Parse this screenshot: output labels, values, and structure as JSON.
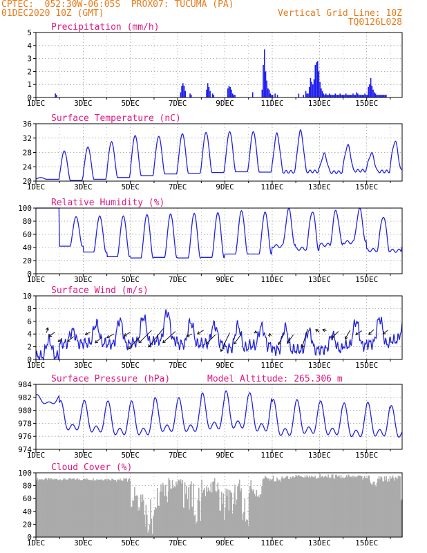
{
  "header": {
    "line1": "CPTEC:  052:30W-06:05S  PROX07: TUCUMA (PA)",
    "line2_left": "01DEC2020 10Z (GMT)",
    "line2_right": "Vertical Grid Line: 10Z",
    "line3_right": "TQ0126L028",
    "model_altitude": "Model Altitude: 265.306 m"
  },
  "colors": {
    "header": "#e8791a",
    "title": "#e0157e",
    "line": "#2222dd",
    "bar": "#1a1aee",
    "cloud": "#aaaaaa",
    "grid": "#999999"
  },
  "chart_data": [
    {
      "type": "bar",
      "title": "Precipitation (mm/h)",
      "ylim": [
        0,
        5
      ],
      "yticks": [
        0,
        1,
        2,
        3,
        4,
        5
      ],
      "xlim": [
        0,
        15.5
      ],
      "xticks": [
        0,
        2,
        4,
        6,
        8,
        10,
        12,
        14
      ],
      "xticklabels": [
        "1DEC",
        "3DEC",
        "5DEC",
        "7DEC",
        "9DEC",
        "11DEC",
        "13DEC",
        "15DEC"
      ],
      "x": [
        0.8,
        0.85,
        6.1,
        6.15,
        6.2,
        6.25,
        6.3,
        6.5,
        6.55,
        7.2,
        7.25,
        7.3,
        7.35,
        7.45,
        7.5,
        8.1,
        8.15,
        8.2,
        8.25,
        8.3,
        8.35,
        8.4,
        9.15,
        9.55,
        9.6,
        9.65,
        9.7,
        9.75,
        9.8,
        9.85,
        9.9,
        9.95,
        10.0,
        10.1,
        10.2,
        11.1,
        11.3,
        11.4,
        11.45,
        11.5,
        11.55,
        11.6,
        11.65,
        11.7,
        11.75,
        11.8,
        11.85,
        11.9,
        11.95,
        12.0,
        12.05,
        12.1,
        12.15,
        12.2,
        12.25,
        12.3,
        12.35,
        12.4,
        12.45,
        12.5,
        12.55,
        12.6,
        12.65,
        12.7,
        12.75,
        12.8,
        12.85,
        12.9,
        12.95,
        13.0,
        13.05,
        13.1,
        13.15,
        13.2,
        13.25,
        13.3,
        13.35,
        13.4,
        13.45,
        13.5,
        13.55,
        13.6,
        13.65,
        13.7,
        13.75,
        13.8,
        13.85,
        13.9,
        13.95,
        14.0,
        14.05,
        14.1,
        14.15,
        14.2,
        14.25,
        14.3,
        14.35,
        14.4,
        14.45,
        14.5,
        14.55,
        14.6,
        14.65,
        14.7,
        14.75,
        14.8
      ],
      "values": [
        0.3,
        0.2,
        0.4,
        0.9,
        1.1,
        0.9,
        0.5,
        0.3,
        0.2,
        0.6,
        1.1,
        0.8,
        0.5,
        0.3,
        0.2,
        0.7,
        0.9,
        0.8,
        0.6,
        0.3,
        0.2,
        0.2,
        0.4,
        0.6,
        2.5,
        3.7,
        2.0,
        1.3,
        0.7,
        0.6,
        0.3,
        0.2,
        0.2,
        0.3,
        0.2,
        0.3,
        0.2,
        0.5,
        0.3,
        0.3,
        0.8,
        1.5,
        1.2,
        1.0,
        1.4,
        2.5,
        2.7,
        2.8,
        2.0,
        1.2,
        0.7,
        0.5,
        0.3,
        0.2,
        0.3,
        0.2,
        0.2,
        0.3,
        0.2,
        0.2,
        0.2,
        0.2,
        0.3,
        0.2,
        0.2,
        0.2,
        0.3,
        0.2,
        0.2,
        0.2,
        0.2,
        0.3,
        0.2,
        0.2,
        0.2,
        0.2,
        0.2,
        0.3,
        0.2,
        0.2,
        0.4,
        0.3,
        0.2,
        0.2,
        0.2,
        0.2,
        0.2,
        0.3,
        0.2,
        0.2,
        0.8,
        1.0,
        1.5,
        0.9,
        0.6,
        0.4,
        0.3,
        0.2,
        0.2,
        0.2,
        0.2,
        0.2,
        0.2,
        0.2,
        0.2,
        0.2
      ]
    },
    {
      "type": "line",
      "title": "Surface Temperature (nC)",
      "ylim": [
        20,
        36
      ],
      "yticks": [
        20,
        24,
        28,
        32,
        36
      ],
      "xlim": [
        0,
        15.5
      ],
      "xticks": [
        0,
        2,
        4,
        6,
        8,
        10,
        12,
        14
      ],
      "xticklabels": [
        "1DEC",
        "3DEC",
        "5DEC",
        "7DEC",
        "9DEC",
        "11DEC",
        "13DEC",
        "15DEC"
      ],
      "base": [
        20.5,
        20.2,
        20.5,
        21.0,
        21.5,
        22.0,
        22.2,
        22.4,
        22.6,
        22.5,
        22.6,
        22.7,
        22.5,
        22.9,
        22.7,
        23.0
      ],
      "amp": [
        0.5,
        8.2,
        9.0,
        10.0,
        11.2,
        10.5,
        11.0,
        11.2,
        11.2,
        11.3,
        10.5,
        11.2,
        5.0,
        7.0,
        5.0,
        8.0
      ],
      "peakfrac": 0.2
    },
    {
      "type": "line",
      "title": "Relative Humidity (%)",
      "ylim": [
        0,
        100
      ],
      "yticks": [
        0,
        20,
        40,
        60,
        80,
        100
      ],
      "xlim": [
        0,
        15.5
      ],
      "xticks": [
        0,
        2,
        4,
        6,
        8,
        10,
        12,
        14
      ],
      "xticklabels": [
        "1DEC",
        "3DEC",
        "5DEC",
        "7DEC",
        "9DEC",
        "11DEC",
        "13DEC",
        "15DEC"
      ],
      "base": [
        100,
        42,
        33,
        26,
        24,
        25,
        24,
        25,
        30,
        30,
        42,
        38,
        44,
        48,
        36,
        35
      ],
      "amp": [
        0,
        45,
        55,
        62,
        66,
        66,
        68,
        68,
        66,
        64,
        56,
        58,
        52,
        50,
        52,
        52
      ],
      "peakfrac": 0.7
    },
    {
      "type": "line",
      "title": "Surface Wind (m/s)",
      "ylim": [
        0,
        10
      ],
      "yticks": [
        0,
        2,
        4,
        6,
        8,
        10
      ],
      "xlim": [
        0,
        15.5
      ],
      "xticks": [
        0,
        2,
        4,
        6,
        8,
        10,
        12,
        14
      ],
      "xticklabels": [
        "1DEC",
        "3DEC",
        "5DEC",
        "7DEC",
        "9DEC",
        "11DEC",
        "13DEC",
        "15DEC"
      ],
      "base": [
        0.5,
        2.5,
        2.6,
        2.4,
        2.7,
        3.0,
        2.4,
        2.5,
        1.8,
        2.2,
        1.5,
        1.5,
        1.6,
        2.2,
        2.5,
        3.0
      ],
      "amp": [
        2.5,
        2.0,
        3.0,
        3.8,
        4.0,
        4.5,
        3.5,
        3.0,
        3.5,
        3.0,
        3.5,
        3.0,
        2.2,
        3.8,
        4.0,
        2.0
      ],
      "peakfrac": 0.55,
      "vectors": [
        {
          "x": 0.45,
          "y": 4.2,
          "u": 0.1,
          "v": 0.4
        },
        {
          "x": 0.8,
          "y": 4.3,
          "u": -0.45,
          "v": -0.35
        },
        {
          "x": 1.1,
          "y": 3.2,
          "u": -0.3,
          "v": -0.2
        },
        {
          "x": 1.6,
          "y": 3.6,
          "u": -0.5,
          "v": -0.4
        },
        {
          "x": 2.3,
          "y": 4.3,
          "u": -0.4,
          "v": -0.2
        },
        {
          "x": 2.8,
          "y": 3.5,
          "u": -0.55,
          "v": -0.45
        },
        {
          "x": 3.3,
          "y": 4.0,
          "u": -0.55,
          "v": -0.3
        },
        {
          "x": 4.0,
          "y": 4.3,
          "u": -0.5,
          "v": -0.3
        },
        {
          "x": 4.4,
          "y": 3.6,
          "u": -0.9,
          "v": -1.0
        },
        {
          "x": 4.9,
          "y": 4.6,
          "u": -1.0,
          "v": -1.0
        },
        {
          "x": 5.4,
          "y": 4.9,
          "u": -1.2,
          "v": -1.5
        },
        {
          "x": 5.9,
          "y": 4.4,
          "u": -1.0,
          "v": -0.9
        },
        {
          "x": 6.6,
          "y": 4.0,
          "u": -0.4,
          "v": -0.2
        },
        {
          "x": 7.1,
          "y": 4.6,
          "u": -0.5,
          "v": -0.3
        },
        {
          "x": 7.6,
          "y": 3.9,
          "u": -0.75,
          "v": -0.75
        },
        {
          "x": 8.2,
          "y": 4.2,
          "u": -0.7,
          "v": -1.5
        },
        {
          "x": 8.7,
          "y": 4.0,
          "u": -0.6,
          "v": -0.8
        },
        {
          "x": 9.3,
          "y": 4.1,
          "u": 0.0,
          "v": 0.2
        },
        {
          "x": 9.9,
          "y": 3.5,
          "u": 0.0,
          "v": 0.3
        },
        {
          "x": 10.5,
          "y": 4.0,
          "u": -0.45,
          "v": -0.85
        },
        {
          "x": 10.9,
          "y": 3.9,
          "u": -0.5,
          "v": -0.7
        },
        {
          "x": 11.5,
          "y": 4.8,
          "u": -0.45,
          "v": -1.5
        },
        {
          "x": 12.0,
          "y": 4.3,
          "u": -0.3,
          "v": 0.2
        },
        {
          "x": 12.3,
          "y": 4.5,
          "u": -0.3,
          "v": 0.1
        },
        {
          "x": 12.8,
          "y": 4.4,
          "u": -0.5,
          "v": -0.5
        },
        {
          "x": 13.3,
          "y": 4.6,
          "u": -0.4,
          "v": -0.7
        },
        {
          "x": 13.8,
          "y": 4.5,
          "u": -0.5,
          "v": -0.3
        },
        {
          "x": 14.3,
          "y": 4.7,
          "u": -0.4,
          "v": -0.4
        },
        {
          "x": 14.9,
          "y": 4.6,
          "u": -0.4,
          "v": -0.3
        }
      ]
    },
    {
      "type": "line",
      "title": "Surface Pressure (hPa)",
      "ylim": [
        974,
        984
      ],
      "yticks": [
        974,
        976,
        978,
        980,
        982,
        984
      ],
      "xlim": [
        0,
        15.5
      ],
      "xticks": [
        0,
        2,
        4,
        6,
        8,
        10,
        12,
        14
      ],
      "xticklabels": [
        "1DEC",
        "3DEC",
        "5DEC",
        "7DEC",
        "9DEC",
        "11DEC",
        "13DEC",
        "15DEC"
      ],
      "p_mean": [
        981.5,
        978.5,
        978.3,
        978.0,
        978.0,
        978.5,
        978.5,
        979.0,
        979.2,
        978.8,
        978.0,
        978.2,
        978.0,
        977.7,
        977.8,
        977.5
      ],
      "p_amp": [
        0.8,
        2.6,
        2.8,
        3.0,
        3.0,
        3.0,
        3.0,
        3.2,
        3.3,
        3.4,
        3.2,
        3.0,
        3.0,
        3.0,
        3.0,
        2.8
      ]
    },
    {
      "type": "bar",
      "title": "Cloud Cover (%)",
      "ylim": [
        0,
        100
      ],
      "yticks": [
        0,
        20,
        40,
        60,
        80,
        100
      ],
      "xlim": [
        0,
        15.5
      ],
      "xticks": [
        0,
        2,
        4,
        6,
        8,
        10,
        12,
        14
      ],
      "xticklabels": [
        "1DEC",
        "3DEC",
        "5DEC",
        "7DEC",
        "9DEC",
        "11DEC",
        "13DEC",
        "15DEC"
      ],
      "segments": [
        {
          "x0": 0,
          "x1": 3.0,
          "lo": 88,
          "hi": 92
        },
        {
          "x0": 3.0,
          "x1": 4.0,
          "lo": 86,
          "hi": 92
        },
        {
          "x0": 4.0,
          "x1": 4.3,
          "lo": 45,
          "hi": 80
        },
        {
          "x0": 4.3,
          "x1": 4.6,
          "lo": 30,
          "hi": 70
        },
        {
          "x0": 4.6,
          "x1": 5.0,
          "lo": 5,
          "hi": 60
        },
        {
          "x0": 5.0,
          "x1": 5.6,
          "lo": 40,
          "hi": 85
        },
        {
          "x0": 5.6,
          "x1": 6.2,
          "lo": 75,
          "hi": 92
        },
        {
          "x0": 6.2,
          "x1": 6.6,
          "lo": 40,
          "hi": 90
        },
        {
          "x0": 6.6,
          "x1": 7.0,
          "lo": 20,
          "hi": 85
        },
        {
          "x0": 7.0,
          "x1": 7.6,
          "lo": 60,
          "hi": 92
        },
        {
          "x0": 7.6,
          "x1": 8.4,
          "lo": 25,
          "hi": 85
        },
        {
          "x0": 8.4,
          "x1": 8.7,
          "lo": 50,
          "hi": 90
        },
        {
          "x0": 8.7,
          "x1": 9.0,
          "lo": 15,
          "hi": 60
        },
        {
          "x0": 9.0,
          "x1": 9.6,
          "lo": 60,
          "hi": 90
        },
        {
          "x0": 9.6,
          "x1": 10.4,
          "lo": 86,
          "hi": 96
        },
        {
          "x0": 10.4,
          "x1": 12.0,
          "lo": 90,
          "hi": 97
        },
        {
          "x0": 12.0,
          "x1": 13.5,
          "lo": 90,
          "hi": 98
        },
        {
          "x0": 13.5,
          "x1": 14.1,
          "lo": 88,
          "hi": 96
        },
        {
          "x0": 14.1,
          "x1": 14.5,
          "lo": 78,
          "hi": 92
        },
        {
          "x0": 14.5,
          "x1": 15.4,
          "lo": 85,
          "hi": 96
        },
        {
          "x0": 15.4,
          "x1": 15.5,
          "lo": 55,
          "hi": 70
        }
      ]
    }
  ]
}
